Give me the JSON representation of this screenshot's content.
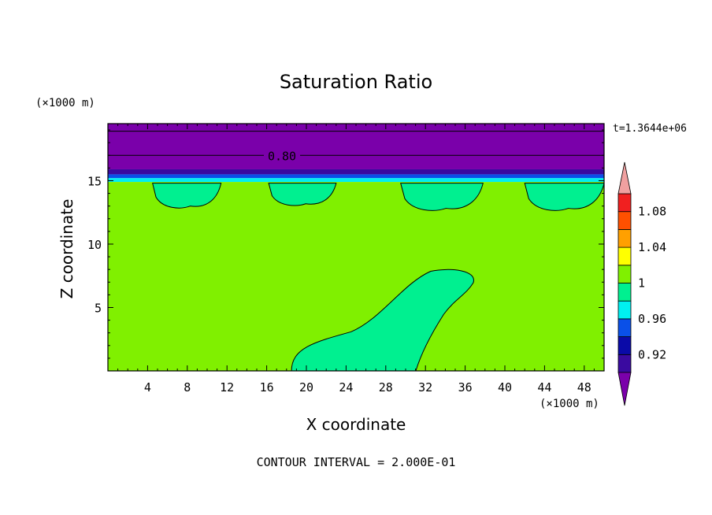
{
  "chart_data": {
    "type": "heatmap",
    "title": "Saturation Ratio",
    "xlabel": "X coordinate",
    "ylabel": "Z coordinate",
    "x_unit": "(×1000 m)",
    "y_unit": "(×1000 m)",
    "time_label": "t=1.3644e+06",
    "footer": "CONTOUR INTERVAL = 2.000E-01",
    "contour_label": "0.80",
    "xlim": [
      0,
      50
    ],
    "ylim": [
      0,
      19.5
    ],
    "x_ticks": [
      4,
      8,
      12,
      16,
      20,
      24,
      28,
      32,
      36,
      40,
      44,
      48
    ],
    "y_ticks": [
      5,
      10,
      15
    ],
    "grid": false,
    "colorbar": {
      "bounds": [
        0.9,
        0.92,
        0.94,
        0.96,
        0.98,
        1.0,
        1.02,
        1.04,
        1.06,
        1.08,
        1.1
      ],
      "colors": [
        "#3a0aa0",
        "#0a0aa8",
        "#0a50e8",
        "#00f0f0",
        "#00f090",
        "#80f000",
        "#ffff00",
        "#ffa000",
        "#ff5000",
        "#f02020"
      ],
      "under_color": "#7a00aa",
      "over_color": "#f0a0a0",
      "labels": [
        "0.92",
        "0.96",
        "1",
        "1.04",
        "1.08"
      ],
      "label_values": [
        0.92,
        0.96,
        1.0,
        1.04,
        1.08
      ]
    },
    "layers": [
      {
        "z_min": 15.9,
        "z_max": 19.5,
        "range": "<0.90",
        "color": "#7a00aa"
      },
      {
        "z_min": 15.5,
        "z_max": 15.9,
        "range": "0.90-0.92",
        "color": "#3a0aa0"
      },
      {
        "z_min": 15.2,
        "z_max": 15.5,
        "range": "0.94-0.96",
        "color": "#0a50e8"
      },
      {
        "z_min": 14.9,
        "z_max": 15.2,
        "range": "0.96-0.98",
        "color": "#00f0f0"
      },
      {
        "z_min": 0.0,
        "z_max": 14.9,
        "range": "1.00-1.02",
        "color": "#80f000"
      }
    ],
    "contour_lines_z": [
      17.0,
      18.9
    ],
    "regions": [
      {
        "range": "0.98-1.00",
        "color": "#00f090",
        "x": [
          4.5,
          11.4
        ],
        "z": [
          12.8,
          14.8
        ]
      },
      {
        "range": "0.98-1.00",
        "color": "#00f090",
        "x": [
          16.2,
          23.0
        ],
        "z": [
          13.0,
          14.8
        ]
      },
      {
        "range": "0.98-1.00",
        "color": "#00f090",
        "x": [
          29.5,
          37.8
        ],
        "z": [
          12.6,
          14.8
        ]
      },
      {
        "range": "0.98-1.00",
        "color": "#00f090",
        "x": [
          42.0,
          50.0
        ],
        "z": [
          12.6,
          14.8
        ]
      },
      {
        "range": "0.98-1.00",
        "color": "#00f090",
        "x": [
          18.5,
          37.2
        ],
        "z": [
          0.0,
          8.1
        ]
      }
    ]
  }
}
